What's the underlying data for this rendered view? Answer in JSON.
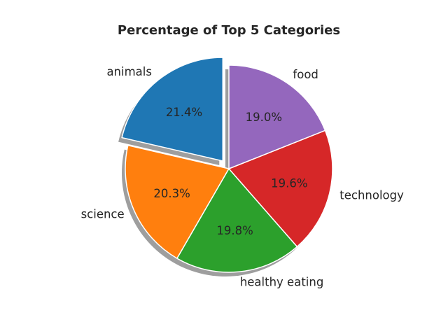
{
  "chart_data": {
    "type": "pie",
    "title": "Percentage of Top 5 Categories",
    "slices": [
      {
        "label": "animals",
        "value": 21.4,
        "pct_label": "21.4%",
        "color": "#1f77b4",
        "exploded": true
      },
      {
        "label": "science",
        "value": 20.3,
        "pct_label": "20.3%",
        "color": "#ff7f0e",
        "exploded": false
      },
      {
        "label": "healthy eating",
        "value": 19.8,
        "pct_label": "19.8%",
        "color": "#2ca02c",
        "exploded": false
      },
      {
        "label": "technology",
        "value": 19.6,
        "pct_label": "19.6%",
        "color": "#d62728",
        "exploded": false
      },
      {
        "label": "food",
        "value": 19.0,
        "pct_label": "19.0%",
        "color": "#9467bd",
        "exploded": false
      }
    ],
    "start_angle_deg": 90,
    "direction": "counterclockwise",
    "shadow": true,
    "edge_color": "#ffffff"
  }
}
